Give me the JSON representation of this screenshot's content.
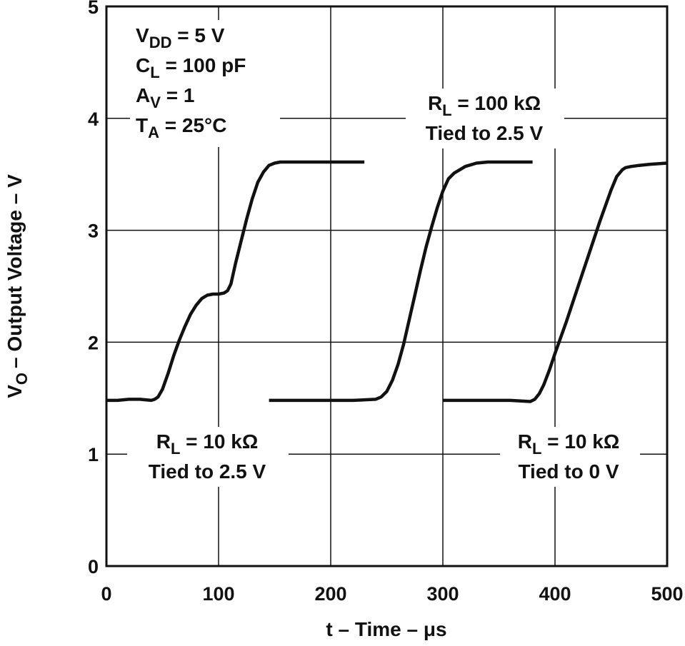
{
  "chart_data": {
    "type": "line",
    "title": "",
    "xlabel": "t – Time – μs",
    "ylabel": {
      "symbol": "V",
      "subscript": "O",
      "rest": "– Output Voltage – V"
    },
    "xlim": [
      0,
      500
    ],
    "ylim": [
      0,
      5
    ],
    "x_ticks": [
      0,
      100,
      200,
      300,
      400,
      500
    ],
    "y_ticks": [
      0,
      1,
      2,
      3,
      4,
      5
    ],
    "x_tick_labels": [
      "0",
      "100",
      "200",
      "300",
      "400",
      "500"
    ],
    "y_tick_labels": [
      "0",
      "1",
      "2",
      "3",
      "4",
      "5"
    ],
    "grid": true,
    "conditions": [
      {
        "symbol": "V",
        "subscript": "DD",
        "rest": " = 5 V"
      },
      {
        "symbol": "C",
        "subscript": "L",
        "rest": " = 100 pF"
      },
      {
        "symbol": "A",
        "subscript": "V",
        "rest": " = 1"
      },
      {
        "symbol": "T",
        "subscript": "A",
        "rest": " = 25°C"
      }
    ],
    "series": [
      {
        "name": "RL = 10 kΩ, Tied to 2.5 V",
        "label_symbol": "R",
        "label_subscript": "L",
        "label_rest": " = 10 kΩ",
        "label_line2": "Tied to 2.5 V",
        "x": [
          0,
          10,
          20,
          30,
          40,
          43,
          46,
          50,
          55,
          60,
          65,
          70,
          75,
          80,
          85,
          90,
          95,
          100,
          105,
          108,
          111,
          115,
          120,
          125,
          130,
          135,
          140,
          145,
          150,
          155,
          160,
          180,
          200,
          230
        ],
        "y": [
          1.48,
          1.48,
          1.49,
          1.49,
          1.48,
          1.49,
          1.51,
          1.58,
          1.72,
          1.88,
          2.02,
          2.14,
          2.25,
          2.33,
          2.39,
          2.42,
          2.43,
          2.43,
          2.44,
          2.46,
          2.52,
          2.7,
          2.9,
          3.1,
          3.28,
          3.43,
          3.52,
          3.58,
          3.6,
          3.61,
          3.61,
          3.61,
          3.61,
          3.61
        ]
      },
      {
        "name": "RL = 100 kΩ, Tied to 2.5 V",
        "label_symbol": "R",
        "label_subscript": "L",
        "label_rest": " = 100 kΩ",
        "label_line2": "Tied to 2.5 V",
        "x": [
          145,
          160,
          180,
          200,
          220,
          240,
          245,
          250,
          255,
          260,
          265,
          270,
          275,
          280,
          285,
          290,
          295,
          300,
          305,
          310,
          315,
          320,
          330,
          340,
          350,
          380
        ],
        "y": [
          1.48,
          1.48,
          1.48,
          1.48,
          1.48,
          1.49,
          1.51,
          1.56,
          1.66,
          1.8,
          1.98,
          2.2,
          2.42,
          2.64,
          2.85,
          3.03,
          3.2,
          3.35,
          3.46,
          3.51,
          3.54,
          3.57,
          3.6,
          3.61,
          3.61,
          3.61
        ]
      },
      {
        "name": "RL = 10 kΩ, Tied to 0 V",
        "label_symbol": "R",
        "label_subscript": "L",
        "label_rest": " = 10 kΩ",
        "label_line2": "Tied to 0 V",
        "x": [
          300,
          320,
          340,
          360,
          378,
          382,
          386,
          390,
          395,
          400,
          410,
          420,
          430,
          440,
          450,
          455,
          460,
          463,
          468,
          475,
          485,
          500
        ],
        "y": [
          1.48,
          1.48,
          1.48,
          1.48,
          1.47,
          1.49,
          1.54,
          1.62,
          1.75,
          1.9,
          2.18,
          2.48,
          2.78,
          3.08,
          3.36,
          3.48,
          3.54,
          3.56,
          3.57,
          3.58,
          3.59,
          3.6
        ]
      }
    ]
  }
}
